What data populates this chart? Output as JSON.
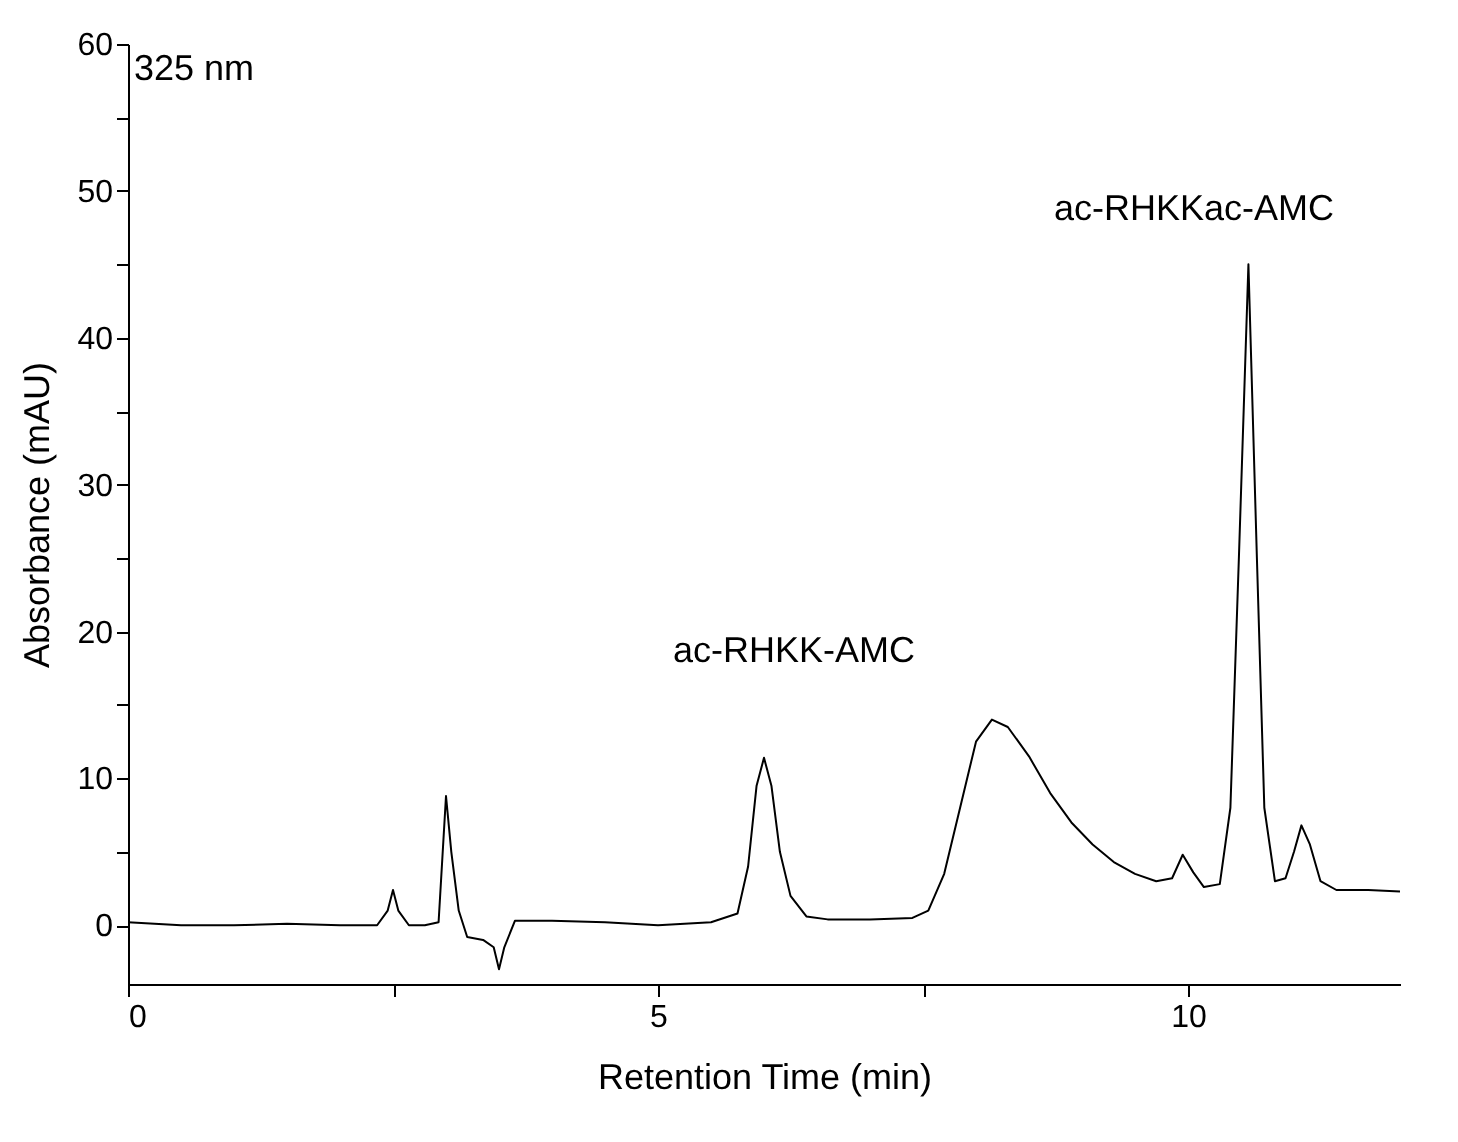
{
  "chart_data": {
    "type": "line",
    "xlabel": "Retention Time (min)",
    "ylabel": "Absorbance (mAU)",
    "xlim": [
      0,
      12
    ],
    "ylim": [
      -4,
      60
    ],
    "xticks": [
      0,
      {
        "value": 2.5,
        "label": null
      },
      5,
      {
        "value": 7.5,
        "label": null
      },
      10
    ],
    "yticks": [
      0,
      {
        "value": 5,
        "label": null
      },
      10,
      {
        "value": 15,
        "label": null
      },
      20,
      {
        "value": 25,
        "label": null
      },
      30,
      {
        "value": 35,
        "label": null
      },
      40,
      {
        "value": 45,
        "label": null
      },
      50,
      {
        "value": 55,
        "label": null
      },
      60
    ],
    "grid": false,
    "marker": "none",
    "line_style": "solid",
    "annotations": [
      "325 nm",
      "ac-RHKK-AMC",
      "ac-RHKKac-AMC"
    ],
    "series": [
      {
        "color": "#000000",
        "x": [
          0,
          0.5,
          1.0,
          1.5,
          2.0,
          2.35,
          2.45,
          2.5,
          2.55,
          2.65,
          2.8,
          2.93,
          3.0,
          3.05,
          3.12,
          3.2,
          3.35,
          3.45,
          3.5,
          3.55,
          3.65,
          4.0,
          4.5,
          5.0,
          5.5,
          5.75,
          5.85,
          5.93,
          6.0,
          6.07,
          6.15,
          6.25,
          6.4,
          6.6,
          7.0,
          7.4,
          7.55,
          7.7,
          7.85,
          8.0,
          8.15,
          8.3,
          8.5,
          8.7,
          8.9,
          9.1,
          9.3,
          9.5,
          9.7,
          9.85,
          9.95,
          10.05,
          10.15,
          10.3,
          10.4,
          10.48,
          10.57,
          10.65,
          10.72,
          10.82,
          10.92,
          11.0,
          11.07,
          11.15,
          11.25,
          11.4,
          11.7,
          12.0
        ],
        "values": [
          0.2,
          0.0,
          0.0,
          0.1,
          0.0,
          0.0,
          1.0,
          2.4,
          1.0,
          0.0,
          0.0,
          0.2,
          8.8,
          5.0,
          1.0,
          -0.8,
          -1.0,
          -1.5,
          -3.0,
          -1.5,
          0.3,
          0.3,
          0.2,
          0.0,
          0.2,
          0.8,
          4.0,
          9.5,
          11.4,
          9.5,
          5.0,
          2.0,
          0.6,
          0.4,
          0.4,
          0.5,
          1.0,
          3.5,
          8.0,
          12.5,
          14.0,
          13.5,
          11.5,
          9.0,
          7.0,
          5.5,
          4.3,
          3.5,
          3.0,
          3.2,
          4.8,
          3.6,
          2.6,
          2.8,
          8.0,
          25.0,
          45.0,
          25.0,
          8.0,
          3.0,
          3.2,
          5.0,
          6.8,
          5.5,
          3.0,
          2.4,
          2.4,
          2.3
        ]
      }
    ]
  }
}
